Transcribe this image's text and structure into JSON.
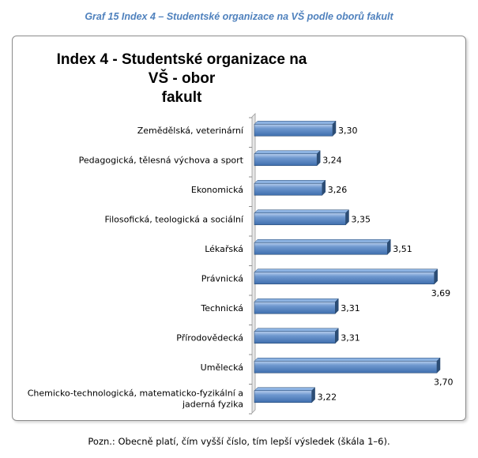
{
  "caption": "Graf 15 Index 4 – Studentské organizace na VŠ podle oborů fakult",
  "note": "Pozn.: Obecně platí, čím vyšší číslo, tím lepší výsledek (škála 1–6).",
  "colors": {
    "bar": "#4f81bd",
    "bar_light": "#8db3e2",
    "bar_dark": "#2c4d75",
    "caption": "#4f81bd"
  },
  "chart_data": {
    "type": "bar",
    "orientation": "horizontal",
    "title": "Index 4 - Studentské organizace na VŠ - obor fakult",
    "title_lines": [
      "Index 4 - Studentské organizace na VŠ - obor",
      "fakult"
    ],
    "categories": [
      "Zemědělská, veterinární",
      "Pedagogická, tělesná výchova a sport",
      "Ekonomická",
      "Filosofická, teologická a sociální",
      "Lékařská",
      "Právnická",
      "Technická",
      "Přírodovědecká",
      "Umělecká",
      "Chemicko-technologická, matematicko-fyzikální a jaderná fyzika"
    ],
    "category_lines": [
      [
        "Zemědělská, veterinární"
      ],
      [
        "Pedagogická, tělesná výchova a sport"
      ],
      [
        "Ekonomická"
      ],
      [
        "Filosofická, teologická a sociální"
      ],
      [
        "Lékařská"
      ],
      [
        "Právnická"
      ],
      [
        "Technická"
      ],
      [
        "Přírodovědecká"
      ],
      [
        "Umělecká"
      ],
      [
        "Chemicko-technologická, matematicko-fyzikální a",
        "jaderná fyzika"
      ]
    ],
    "values": [
      3.3,
      3.24,
      3.26,
      3.35,
      3.51,
      3.69,
      3.31,
      3.31,
      3.7,
      3.22
    ],
    "value_labels": [
      "3,30",
      "3,24",
      "3,26",
      "3,35",
      "3,51",
      "3,69",
      "3,31",
      "3,31",
      "3,70",
      "3,22"
    ],
    "xlim": [
      3.0,
      3.75
    ],
    "legend": "none",
    "grid": false
  }
}
